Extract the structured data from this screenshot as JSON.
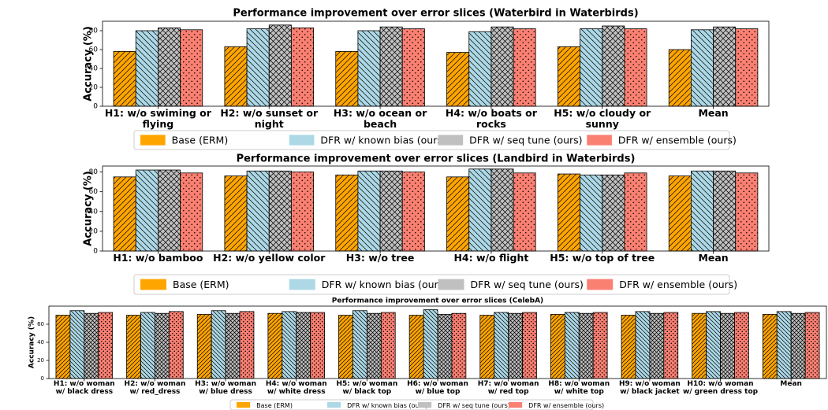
{
  "chart_data": [
    {
      "type": "bar",
      "title": "Performance improvement over error slices (Waterbird in Waterbirds)",
      "ylabel": "Accuracy (%)",
      "categories": [
        "H1: w/o swiming or\nflying",
        "H2: w/o sunset or\nnight",
        "H3: w/o ocean or\nbeach",
        "H4: w/o boats or\nrocks",
        "H5: w/o cloudy or\nsunny",
        "Mean"
      ],
      "series": [
        {
          "name": "Base (ERM)",
          "color": "#ffa500",
          "hatch": "/",
          "values": [
            58,
            63,
            58,
            57,
            63,
            60
          ]
        },
        {
          "name": "DFR w/ known bias (ours)",
          "color": "#add8e6",
          "hatch": "\\",
          "values": [
            80,
            82,
            80,
            79,
            82,
            81
          ]
        },
        {
          "name": "DFR w/ seq tune (ours)",
          "color": "#c0c0c0",
          "hatch": "x",
          "values": [
            83,
            86,
            84,
            84,
            85,
            84
          ]
        },
        {
          "name": "DFR w/ ensemble (ours)",
          "color": "#fa8072",
          "hatch": ".",
          "values": [
            81,
            83,
            82,
            82,
            82,
            82
          ]
        }
      ],
      "ylim": [
        0,
        90
      ],
      "yticks": [
        0,
        20,
        40,
        60,
        80
      ]
    },
    {
      "type": "bar",
      "title": "Performance improvement over error slices (Landbird in Waterbirds)",
      "ylabel": "Accuracy (%)",
      "categories": [
        "H1: w/o bamboo",
        "H2: w/o yellow color",
        "H3: w/o tree",
        "H4: w/o flight",
        "H5: w/o top of tree",
        "Mean"
      ],
      "series": [
        {
          "name": "Base (ERM)",
          "color": "#ffa500",
          "hatch": "/",
          "values": [
            75,
            76,
            77,
            75,
            78,
            76
          ]
        },
        {
          "name": "DFR w/ known bias (ours)",
          "color": "#add8e6",
          "hatch": "\\",
          "values": [
            82,
            81,
            81,
            83,
            77,
            81
          ]
        },
        {
          "name": "DFR w/ seq tune (ours)",
          "color": "#c0c0c0",
          "hatch": "x",
          "values": [
            82,
            81,
            81,
            83,
            77,
            81
          ]
        },
        {
          "name": "DFR w/ ensemble (ours)",
          "color": "#fa8072",
          "hatch": ".",
          "values": [
            79,
            80,
            80,
            79,
            79,
            79
          ]
        }
      ],
      "ylim": [
        0,
        86
      ],
      "yticks": [
        0,
        20,
        40,
        60,
        80
      ]
    },
    {
      "type": "bar",
      "title": "Performance improvement over error slices (CelebA)",
      "ylabel": "Accuracy (%)",
      "categories": [
        "H1: w/o woman\nw/ black dress",
        "H2: w/o woman\nw/ red_dress",
        "H3: w/o woman\nw/ blue dress",
        "H4: w/o woman\nw/ white dress",
        "H5: w/o woman\nw/ black top",
        "H6: w/o woman\nw/ blue top",
        "H7: w/o woman\nw/ red top",
        "H8: w/o woman\nw/ white top",
        "H9: w/o woman\nw/ black jacket",
        "H10: w/o woman\nw/ green dress top",
        "Mean"
      ],
      "series": [
        {
          "name": "Base (ERM)",
          "color": "#ffa500",
          "hatch": "/",
          "values": [
            70,
            70,
            71,
            72,
            70,
            70,
            70,
            71,
            70,
            72,
            71
          ]
        },
        {
          "name": "DFR w/ known bias (ours)",
          "color": "#add8e6",
          "hatch": "\\",
          "values": [
            75,
            73,
            75,
            74,
            75,
            76,
            73,
            73,
            74,
            74,
            74
          ]
        },
        {
          "name": "DFR w/ seq tune (ours)",
          "color": "#c0c0c0",
          "hatch": "x",
          "values": [
            72,
            72,
            72,
            73,
            72,
            71,
            72,
            72,
            72,
            72,
            72
          ]
        },
        {
          "name": "DFR w/ ensemble (ours)",
          "color": "#fa8072",
          "hatch": ".",
          "values": [
            73,
            74,
            74,
            73,
            73,
            72,
            73,
            73,
            73,
            73,
            73
          ]
        }
      ],
      "ylim": [
        0,
        80
      ],
      "yticks": [
        0,
        20,
        40,
        60
      ]
    }
  ]
}
